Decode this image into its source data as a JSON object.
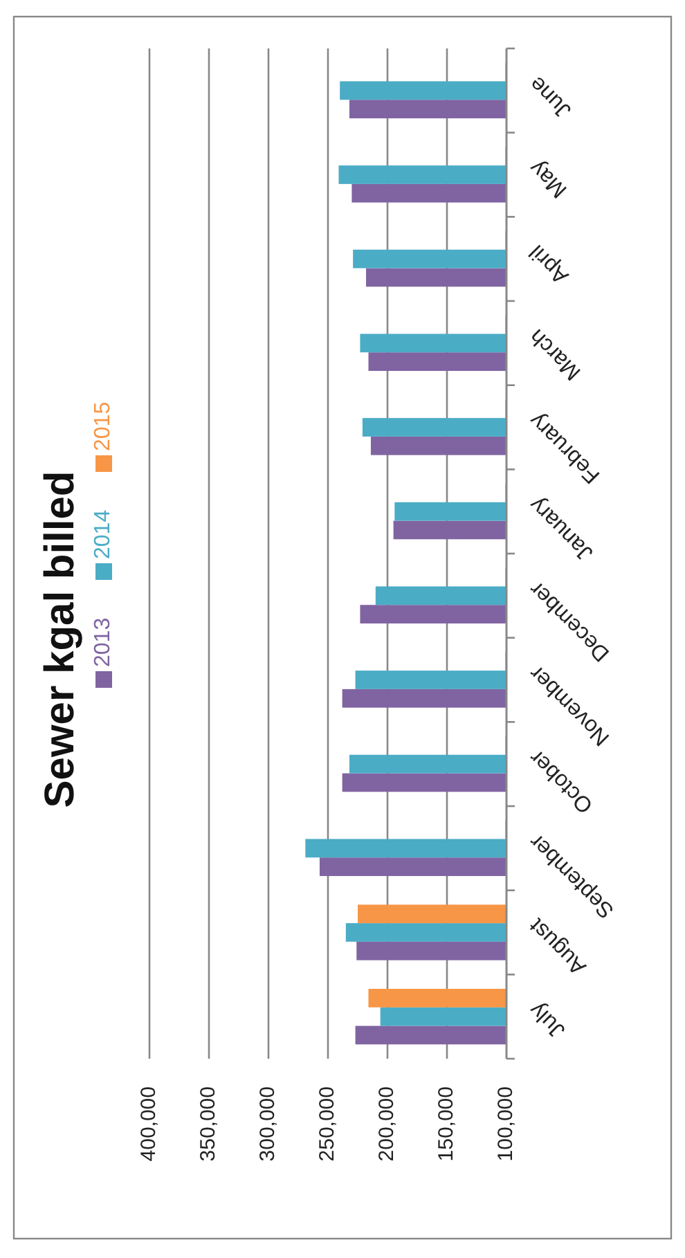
{
  "chart_data": {
    "type": "bar",
    "orientation": "horizontal",
    "title": "Sewer kgal billed",
    "categories": [
      "June",
      "May",
      "April",
      "March",
      "February",
      "January",
      "December",
      "November",
      "October",
      "September",
      "August",
      "July"
    ],
    "series": [
      {
        "name": "2013",
        "color": "#8064a2",
        "values": [
          232000,
          230000,
          218000,
          216000,
          214000,
          195000,
          223000,
          238000,
          238000,
          257000,
          226000,
          227000
        ]
      },
      {
        "name": "2014",
        "color": "#4bacc6",
        "values": [
          240000,
          241000,
          229000,
          223000,
          221000,
          194000,
          210000,
          227000,
          232000,
          269000,
          235000,
          206000
        ]
      },
      {
        "name": "2015",
        "color": "#f79646",
        "values": [
          101000,
          101000,
          101000,
          101000,
          101000,
          101000,
          101000,
          101000,
          101000,
          101000,
          225000,
          216000
        ]
      }
    ],
    "xlim": [
      400000,
      100000
    ],
    "xticks": [
      {
        "value": 400000,
        "label": "400,000"
      },
      {
        "value": 350000,
        "label": "350,000"
      },
      {
        "value": 300000,
        "label": "300,000"
      },
      {
        "value": 250000,
        "label": "250,000"
      },
      {
        "value": 200000,
        "label": "200,000"
      },
      {
        "value": 150000,
        "label": "150,000"
      },
      {
        "value": 100000,
        "label": "100,000"
      }
    ],
    "grid": "x",
    "legend": "left"
  }
}
